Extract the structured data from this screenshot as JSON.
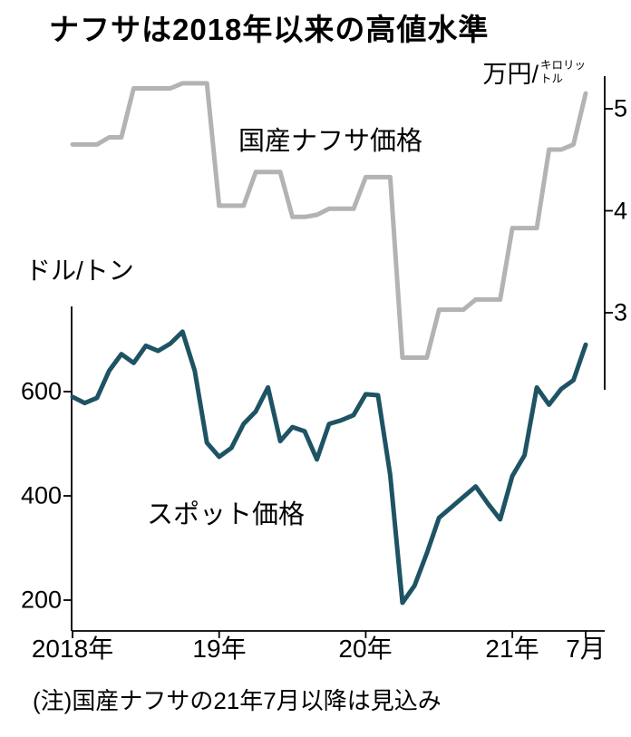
{
  "title": "ナフサは2018年以来の高値水準",
  "note": "(注)国産ナフサの21年7月以降は見込み",
  "right_axis": {
    "unit_main": "万円/",
    "unit_small_top": "キロリッ",
    "unit_small_bottom": "トル",
    "ticks": [
      "5",
      "4",
      "3"
    ]
  },
  "left_axis": {
    "unit": "ドル/トン",
    "ticks": [
      "600",
      "400",
      "200"
    ]
  },
  "x_axis": {
    "labels": [
      "2018年",
      "19年",
      "20年",
      "21年",
      "7月"
    ]
  },
  "colors": {
    "spot_line": "#1e5364",
    "naphtha_line": "#b3b3b3",
    "axis": "#000000",
    "background": "#ffffff",
    "text": "#000000"
  },
  "chart_data": {
    "type": "line",
    "interval": "monthly",
    "x_start": "2018-01",
    "x_end": "2021-07",
    "months": [
      "2018-01",
      "2018-02",
      "2018-03",
      "2018-04",
      "2018-05",
      "2018-06",
      "2018-07",
      "2018-08",
      "2018-09",
      "2018-10",
      "2018-11",
      "2018-12",
      "2019-01",
      "2019-02",
      "2019-03",
      "2019-04",
      "2019-05",
      "2019-06",
      "2019-07",
      "2019-08",
      "2019-09",
      "2019-10",
      "2019-11",
      "2019-12",
      "2020-01",
      "2020-02",
      "2020-03",
      "2020-04",
      "2020-05",
      "2020-06",
      "2020-07",
      "2020-08",
      "2020-09",
      "2020-10",
      "2020-11",
      "2020-12",
      "2021-01",
      "2021-02",
      "2021-03",
      "2021-04",
      "2021-05",
      "2021-06",
      "2021-07"
    ],
    "series": [
      {
        "name": "国産ナフサ価格",
        "axis": "right",
        "unit": "万円/キロリットル",
        "color": "#b3b3b3",
        "values": [
          4.65,
          4.65,
          4.65,
          4.72,
          4.72,
          5.2,
          5.2,
          5.2,
          5.2,
          5.25,
          5.25,
          5.25,
          4.05,
          4.05,
          4.05,
          4.38,
          4.38,
          4.38,
          3.94,
          3.94,
          3.96,
          4.02,
          4.02,
          4.02,
          4.33,
          4.33,
          4.33,
          2.56,
          2.56,
          2.56,
          3.03,
          3.03,
          3.03,
          3.13,
          3.13,
          3.13,
          3.83,
          3.83,
          3.83,
          4.6,
          4.6,
          4.65,
          5.15
        ]
      },
      {
        "name": "スポット価格",
        "axis": "left",
        "unit": "ドル/トン",
        "color": "#1e5364",
        "values": [
          590,
          578,
          588,
          640,
          672,
          655,
          688,
          678,
          692,
          715,
          640,
          502,
          475,
          492,
          538,
          562,
          608,
          505,
          532,
          524,
          470,
          538,
          545,
          555,
          595,
          593,
          440,
          195,
          228,
          290,
          358,
          378,
          398,
          418,
          385,
          355,
          438,
          478,
          608,
          575,
          605,
          622,
          690
        ]
      }
    ],
    "left_axis_ticks": [
      600,
      400,
      200
    ],
    "right_axis_ticks": [
      5,
      4,
      3
    ],
    "x_tick_months": [
      0,
      12,
      24,
      36,
      42
    ],
    "x_tick_labels": [
      "2018年",
      "19年",
      "20年",
      "21年",
      "7月"
    ],
    "left_ylim": [
      140,
      760
    ],
    "right_ylim": [
      2.25,
      5.32
    ],
    "grid": false,
    "legend_position": "inline-annotations"
  }
}
